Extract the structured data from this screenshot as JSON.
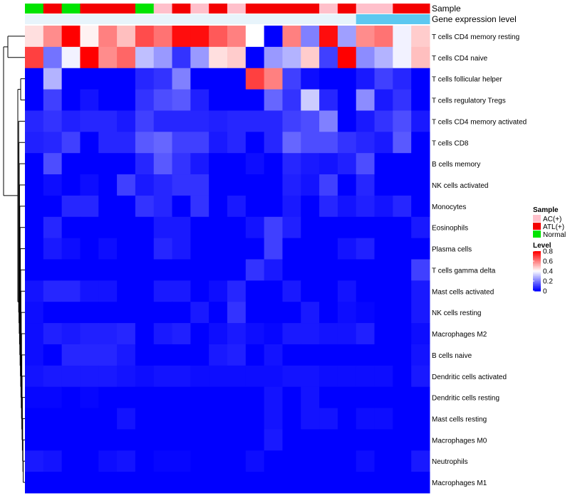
{
  "chart_data": {
    "type": "heatmap",
    "annotation_tracks": [
      {
        "name": "Sample",
        "values": [
          "Normal",
          "ATL(+)",
          "Normal",
          "ATL(+)",
          "ATL(+)",
          "ATL(+)",
          "Normal",
          "AC(+)",
          "ATL(+)",
          "AC(+)",
          "ATL(+)",
          "AC(+)",
          "ATL(+)",
          "ATL(+)",
          "ATL(+)",
          "ATL(+)",
          "AC(+)",
          "ATL(+)",
          "AC(+)",
          "AC(+)",
          "ATL(+)",
          "ATL(+)"
        ]
      },
      {
        "name": "Gene expression level",
        "values": [
          "low",
          "low",
          "low",
          "low",
          "low",
          "low",
          "low",
          "low",
          "low",
          "low",
          "low",
          "low",
          "low",
          "low",
          "low",
          "low",
          "low",
          "low",
          "high",
          "high",
          "high",
          "high"
        ]
      }
    ],
    "rows": [
      "T cells CD4 memory resting",
      "T cells CD4 naive",
      "T cells follicular helper",
      "T cells regulatory  Tregs",
      "T cells CD4 memory activated",
      "T cells CD8",
      "B cells memory",
      "NK cells activated",
      "Monocytes",
      "Eosinophils",
      "Plasma cells",
      "T cells gamma delta",
      "Mast cells activated",
      "NK cells resting",
      "Macrophages M2",
      "B cells naive",
      "Dendritic cells activated",
      "Dendritic cells resting",
      "Mast cells resting",
      "Macrophages M0",
      "Neutrophils",
      "Macrophages M1"
    ],
    "matrix": [
      [
        0.45,
        0.58,
        0.8,
        0.42,
        0.6,
        0.5,
        0.68,
        0.62,
        0.78,
        0.78,
        0.66,
        0.6,
        0.4,
        0.0,
        0.6,
        0.2,
        0.78,
        0.25,
        0.58,
        0.62,
        0.38,
        0.48
      ],
      [
        0.7,
        0.18,
        0.38,
        0.8,
        0.58,
        0.64,
        0.3,
        0.24,
        0.08,
        0.24,
        0.45,
        0.48,
        0.0,
        0.24,
        0.28,
        0.48,
        0.1,
        0.8,
        0.22,
        0.28,
        0.38,
        0.5
      ],
      [
        0.0,
        0.28,
        0.0,
        0.0,
        0.0,
        0.0,
        0.06,
        0.08,
        0.2,
        0.0,
        0.0,
        0.0,
        0.7,
        0.6,
        0.1,
        0.02,
        0.0,
        0.0,
        0.04,
        0.1,
        0.06,
        0.0
      ],
      [
        0.0,
        0.1,
        0.0,
        0.03,
        0.0,
        0.0,
        0.08,
        0.12,
        0.14,
        0.05,
        0.0,
        0.0,
        0.0,
        0.16,
        0.08,
        0.32,
        0.06,
        0.0,
        0.22,
        0.04,
        0.08,
        0.0
      ],
      [
        0.06,
        0.08,
        0.05,
        0.06,
        0.06,
        0.04,
        0.1,
        0.06,
        0.06,
        0.06,
        0.05,
        0.06,
        0.06,
        0.06,
        0.1,
        0.12,
        0.2,
        0.0,
        0.04,
        0.08,
        0.12,
        0.04
      ],
      [
        0.05,
        0.06,
        0.1,
        0.0,
        0.06,
        0.06,
        0.14,
        0.16,
        0.1,
        0.1,
        0.04,
        0.06,
        0.0,
        0.06,
        0.16,
        0.12,
        0.12,
        0.08,
        0.06,
        0.04,
        0.14,
        0.0
      ],
      [
        0.0,
        0.12,
        0.0,
        0.0,
        0.0,
        0.0,
        0.06,
        0.14,
        0.08,
        0.04,
        0.0,
        0.0,
        0.02,
        0.0,
        0.06,
        0.04,
        0.03,
        0.05,
        0.12,
        0.0,
        0.0,
        0.0
      ],
      [
        0.0,
        0.02,
        0.0,
        0.02,
        0.0,
        0.1,
        0.04,
        0.06,
        0.08,
        0.08,
        0.0,
        0.0,
        0.0,
        0.0,
        0.05,
        0.03,
        0.1,
        0.0,
        0.06,
        0.0,
        0.0,
        0.0
      ],
      [
        0.0,
        0.0,
        0.06,
        0.06,
        0.0,
        0.0,
        0.08,
        0.06,
        0.0,
        0.08,
        0.0,
        0.04,
        0.0,
        0.0,
        0.04,
        0.0,
        0.06,
        0.03,
        0.05,
        0.03,
        0.06,
        0.0
      ],
      [
        0.0,
        0.06,
        0.0,
        0.0,
        0.0,
        0.0,
        0.0,
        0.04,
        0.04,
        0.0,
        0.0,
        0.0,
        0.03,
        0.1,
        0.05,
        0.0,
        0.0,
        0.0,
        0.0,
        0.0,
        0.0,
        0.04
      ],
      [
        0.0,
        0.04,
        0.02,
        0.0,
        0.02,
        0.0,
        0.0,
        0.06,
        0.04,
        0.0,
        0.0,
        0.0,
        0.0,
        0.1,
        0.0,
        0.0,
        0.0,
        0.03,
        0.05,
        0.0,
        0.0,
        0.0
      ],
      [
        0.0,
        0.0,
        0.0,
        0.0,
        0.0,
        0.0,
        0.0,
        0.0,
        0.0,
        0.0,
        0.0,
        0.0,
        0.08,
        0.04,
        0.0,
        0.0,
        0.0,
        0.0,
        0.0,
        0.0,
        0.0,
        0.1
      ],
      [
        0.03,
        0.06,
        0.06,
        0.03,
        0.03,
        0.0,
        0.0,
        0.04,
        0.04,
        0.0,
        0.02,
        0.06,
        0.0,
        0.0,
        0.04,
        0.0,
        0.0,
        0.03,
        0.0,
        0.0,
        0.0,
        0.04
      ],
      [
        0.02,
        0.0,
        0.0,
        0.0,
        0.0,
        0.0,
        0.0,
        0.0,
        0.0,
        0.04,
        0.0,
        0.08,
        0.0,
        0.0,
        0.0,
        0.04,
        0.0,
        0.02,
        0.01,
        0.0,
        0.0,
        0.04
      ],
      [
        0.02,
        0.05,
        0.04,
        0.05,
        0.05,
        0.06,
        0.0,
        0.04,
        0.05,
        0.0,
        0.02,
        0.04,
        0.02,
        0.01,
        0.04,
        0.04,
        0.03,
        0.03,
        0.05,
        0.0,
        0.0,
        0.02
      ],
      [
        0.02,
        0.0,
        0.06,
        0.06,
        0.06,
        0.04,
        0.0,
        0.0,
        0.0,
        0.0,
        0.04,
        0.05,
        0.0,
        0.03,
        0.0,
        0.0,
        0.0,
        0.0,
        0.0,
        0.0,
        0.0,
        0.03
      ],
      [
        0.03,
        0.04,
        0.04,
        0.04,
        0.04,
        0.03,
        0.02,
        0.03,
        0.03,
        0.02,
        0.02,
        0.02,
        0.02,
        0.02,
        0.03,
        0.03,
        0.02,
        0.02,
        0.02,
        0.02,
        0.0,
        0.04
      ],
      [
        0.01,
        0.01,
        0.0,
        0.01,
        0.0,
        0.0,
        0.0,
        0.0,
        0.0,
        0.0,
        0.0,
        0.0,
        0.0,
        0.03,
        0.0,
        0.03,
        0.0,
        0.0,
        0.0,
        0.0,
        0.0,
        0.0
      ],
      [
        0.0,
        0.0,
        0.0,
        0.0,
        0.0,
        0.03,
        0.0,
        0.0,
        0.0,
        0.0,
        0.0,
        0.0,
        0.0,
        0.03,
        0.0,
        0.03,
        0.03,
        0.0,
        0.02,
        0.02,
        0.0,
        0.0
      ],
      [
        0.0,
        0.0,
        0.0,
        0.0,
        0.0,
        0.0,
        0.0,
        0.0,
        0.0,
        0.0,
        0.0,
        0.0,
        0.0,
        0.04,
        0.0,
        0.0,
        0.0,
        0.0,
        0.0,
        0.0,
        0.0,
        0.0
      ],
      [
        0.04,
        0.03,
        0.0,
        0.0,
        0.02,
        0.03,
        0.0,
        0.01,
        0.01,
        0.0,
        0.0,
        0.0,
        0.02,
        0.0,
        0.0,
        0.0,
        0.0,
        0.0,
        0.02,
        0.0,
        0.0,
        0.04
      ],
      [
        0.0,
        0.0,
        0.0,
        0.0,
        0.0,
        0.0,
        0.0,
        0.0,
        0.0,
        0.0,
        0.0,
        0.0,
        0.0,
        0.0,
        0.0,
        0.0,
        0.0,
        0.0,
        0.0,
        0.0,
        0.0,
        0.0
      ]
    ],
    "legend_sample": {
      "title": "Sample",
      "entries": [
        {
          "label": "AC(+)",
          "color": "#FFC0CB"
        },
        {
          "label": "ATL(+)",
          "color": "#F40000"
        },
        {
          "label": "Normal",
          "color": "#00E400"
        }
      ]
    },
    "legend_level": {
      "title": "Level",
      "ticks": [
        0.8,
        0.6,
        0.4,
        0.2,
        0
      ],
      "range": [
        0,
        0.8
      ]
    },
    "expression_colors": {
      "low": "#E8F4FB",
      "high": "#5DC8F0"
    },
    "scale_colors": {
      "low": "#0000FF",
      "mid": "#FFFFFF",
      "high": "#FF0000"
    }
  }
}
